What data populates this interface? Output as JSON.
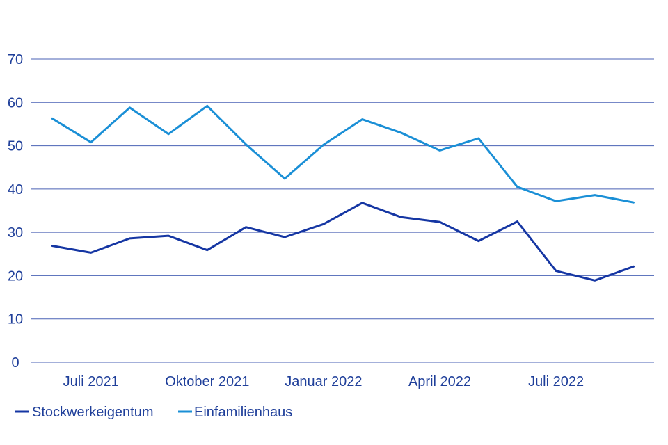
{
  "chart_data": {
    "type": "line",
    "title": "",
    "xlabel": "",
    "ylabel": "",
    "ylim": [
      0,
      70
    ],
    "y_ticks": [
      0,
      10,
      20,
      30,
      40,
      50,
      60,
      70
    ],
    "grid": true,
    "legend_position": "bottom-left",
    "x": [
      "2021-06",
      "2021-07",
      "2021-08",
      "2021-09",
      "2021-10",
      "2021-11",
      "2021-12",
      "2022-01",
      "2022-02",
      "2022-03",
      "2022-04",
      "2022-05",
      "2022-06",
      "2022-07",
      "2022-08",
      "2022-09"
    ],
    "x_tick_labels": [
      {
        "label": "Juli 2021",
        "x": "2021-07"
      },
      {
        "label": "Oktober 2021",
        "x": "2021-10"
      },
      {
        "label": "Januar 2022",
        "x": "2022-01"
      },
      {
        "label": "April 2022",
        "x": "2022-04"
      },
      {
        "label": "Juli 2022",
        "x": "2022-07"
      }
    ],
    "series": [
      {
        "name": "Stockwerkeigentum",
        "color": "#1536a3",
        "values": [
          26.9,
          25.3,
          28.6,
          29.2,
          25.9,
          31.2,
          28.9,
          31.9,
          36.8,
          33.5,
          32.4,
          28.0,
          32.5,
          21.1,
          18.9,
          22.1
        ]
      },
      {
        "name": "Einfamilienhaus",
        "color": "#1a8fd6",
        "values": [
          56.3,
          50.8,
          58.8,
          52.7,
          59.2,
          50.3,
          42.4,
          50.2,
          56.1,
          53.0,
          48.9,
          51.7,
          40.5,
          37.2,
          38.6,
          36.9
        ]
      }
    ]
  },
  "colors": {
    "grid": "#4a62b5",
    "text": "#1f3f9a"
  }
}
